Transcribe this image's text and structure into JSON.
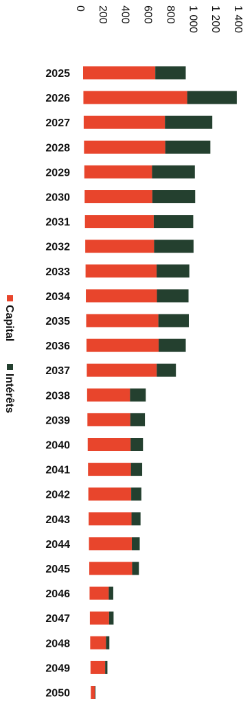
{
  "chart_data": {
    "type": "bar",
    "orientation": "horizontal",
    "stacked": true,
    "categories": [
      "2025",
      "2026",
      "2027",
      "2028",
      "2029",
      "2030",
      "2031",
      "2032",
      "2033",
      "2034",
      "2035",
      "2036",
      "2037",
      "2038",
      "2039",
      "2040",
      "2041",
      "2042",
      "2043",
      "2044",
      "2045",
      "2046",
      "2047",
      "2048",
      "2049",
      "2050"
    ],
    "series": [
      {
        "name": "Capital",
        "color": "#e8452c",
        "values": [
          640,
          920,
          720,
          720,
          600,
          600,
          610,
          610,
          630,
          630,
          640,
          640,
          620,
          380,
          380,
          380,
          380,
          380,
          380,
          380,
          380,
          170,
          170,
          140,
          130,
          35
        ]
      },
      {
        "name": "Intérêts",
        "color": "#24402f",
        "values": [
          270,
          440,
          420,
          400,
          380,
          380,
          350,
          350,
          290,
          280,
          270,
          240,
          170,
          140,
          130,
          110,
          100,
          90,
          80,
          70,
          60,
          40,
          40,
          30,
          20,
          5
        ]
      }
    ],
    "xticks": [
      "0",
      "200",
      "400",
      "600",
      "800",
      "1 000",
      "1 200",
      "1 400"
    ],
    "xlim": [
      0,
      1400
    ],
    "legend": [
      "Capital",
      "Intérêts"
    ],
    "legend_position": "left",
    "grid": false,
    "axis_label_rotation": "rotated 90 degrees",
    "title": "",
    "xlabel": "",
    "ylabel": ""
  }
}
